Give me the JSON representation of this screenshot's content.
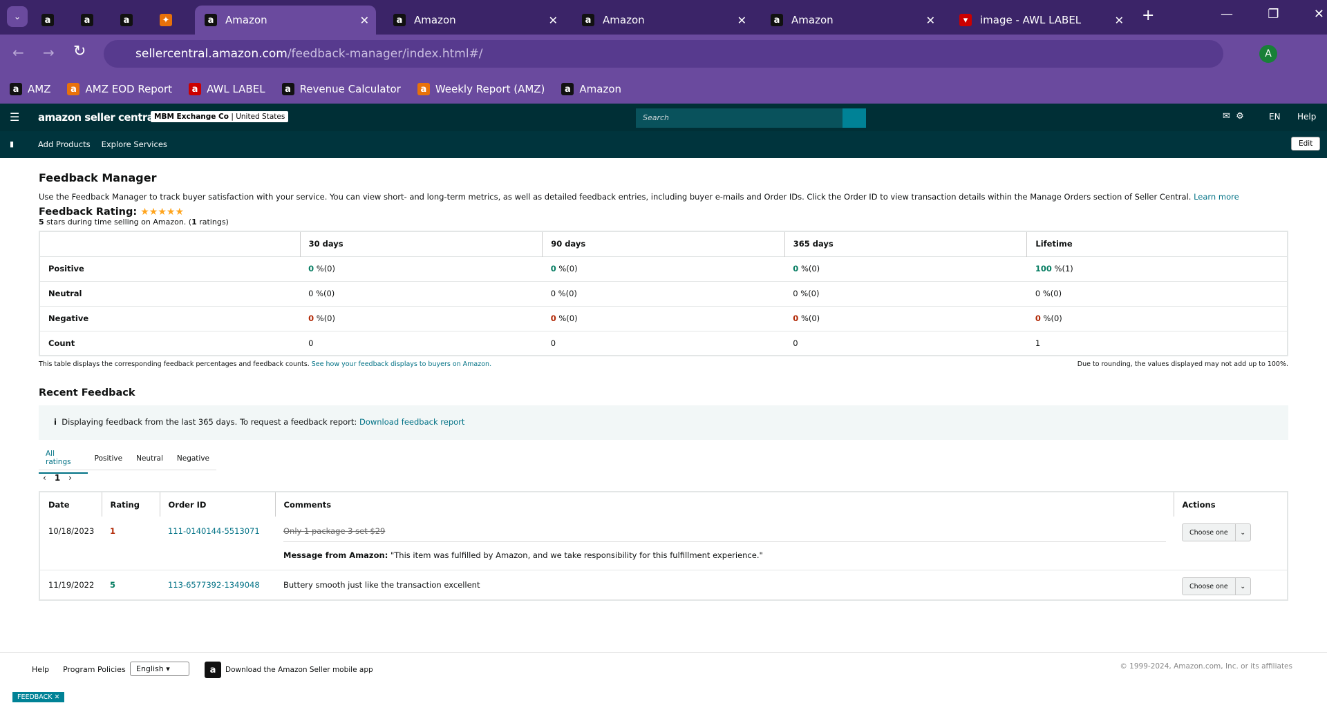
{
  "browser": {
    "tabs": [
      "Amazon",
      "Amazon",
      "Amazon",
      "Amazon",
      "image - AWL LABEL"
    ],
    "url_host": "sellercentral.amazon.com",
    "url_path": "/feedback-manager/index.html#/",
    "bookmarks": [
      "AMZ",
      "AMZ EOD Report",
      "AWL LABEL",
      "Revenue Calculator",
      "Weekly Report (AMZ)",
      "Amazon"
    ],
    "profile": "A"
  },
  "header": {
    "logo": "amazon seller central",
    "account": "MBM Exchange Co",
    "marketplace": "United States",
    "search": "Search",
    "language": "EN",
    "help": "Help",
    "nav": [
      "Add Products",
      "Explore Services"
    ],
    "edit": "Edit"
  },
  "page": {
    "title": "Feedback Manager",
    "description": "Use the Feedback Manager to track buyer satisfaction with your service. You can view short- and long-term metrics, as well as detailed feedback entries, including buyer e-mails and Order IDs. Click the Order ID to view transaction details within the Manage Orders section of Seller Central.",
    "learn_more": "Learn more",
    "rating_label": "Feedback Rating:",
    "summary": [
      "5",
      " stars during time selling on Amazon. (",
      "1",
      " ratings)"
    ]
  },
  "summary_table": {
    "columns": [
      "30 days",
      "90 days",
      "365 days",
      "Lifetime"
    ],
    "rows": [
      {
        "label": "Positive",
        "cells": [
          {
            "value": 0,
            "suffix": "%(0)"
          },
          {
            "value": 0,
            "suffix": "%(0)"
          },
          {
            "value": 0,
            "suffix": "%(0)"
          },
          {
            "value": 100,
            "suffix": "%(1)"
          }
        ]
      },
      {
        "label": "Neutral",
        "cells": [
          {
            "value": 0,
            "suffix": "%(0)"
          },
          {
            "value": 0,
            "suffix": "%(0)"
          },
          {
            "value": 0,
            "suffix": "%(0)"
          },
          {
            "value": 0,
            "suffix": "%(0)"
          }
        ]
      },
      {
        "label": "Negative",
        "cells": [
          {
            "value": 0,
            "suffix": "%(0)"
          },
          {
            "value": 0,
            "suffix": "%(0)"
          },
          {
            "value": 0,
            "suffix": "%(0)"
          },
          {
            "value": 0,
            "suffix": "%(0)"
          }
        ]
      },
      {
        "label": "Count",
        "cells": [
          {
            "value": 0
          },
          {
            "value": 0
          },
          {
            "value": 0
          },
          {
            "value": 1
          }
        ]
      }
    ],
    "note": "This table displays the corresponding feedback percentages and feedback counts.",
    "note_link": "See how your feedback displays to buyers on Amazon.",
    "rounding_note": "Due to rounding, the values displayed may not add up to 100%."
  },
  "recent": {
    "title": "Recent Feedback",
    "info": "Displaying feedback from the last 365 days. To request a feedback report:",
    "info_link": "Download feedback report",
    "filters": [
      "All ratings",
      "Positive",
      "Neutral",
      "Negative"
    ],
    "page": 1,
    "columns": [
      "Date",
      "Rating",
      "Order ID",
      "Comments",
      "Actions"
    ],
    "rows": [
      {
        "date": "10/18/2023",
        "rating": 1,
        "order_id": "111-0140144-5513071",
        "comment": "Only 1 package 3 set $29",
        "message_label": "Message from Amazon:",
        "message": "\"This item was fulfilled by Amazon, and we take responsibility for this fulfillment experience.\"",
        "action": "Choose one"
      },
      {
        "date": "11/19/2022",
        "rating": 5,
        "order_id": "113-6577392-1349048",
        "comment": "Buttery smooth just like the transaction excellent",
        "action": "Choose one"
      }
    ]
  },
  "footer": {
    "links": [
      "Help",
      "Program Policies"
    ],
    "language": "English",
    "app": "Download the Amazon Seller mobile app",
    "copyright": "© 1999-2024, Amazon.com, Inc. or its affiliates",
    "feedback": "FEEDBACK"
  }
}
